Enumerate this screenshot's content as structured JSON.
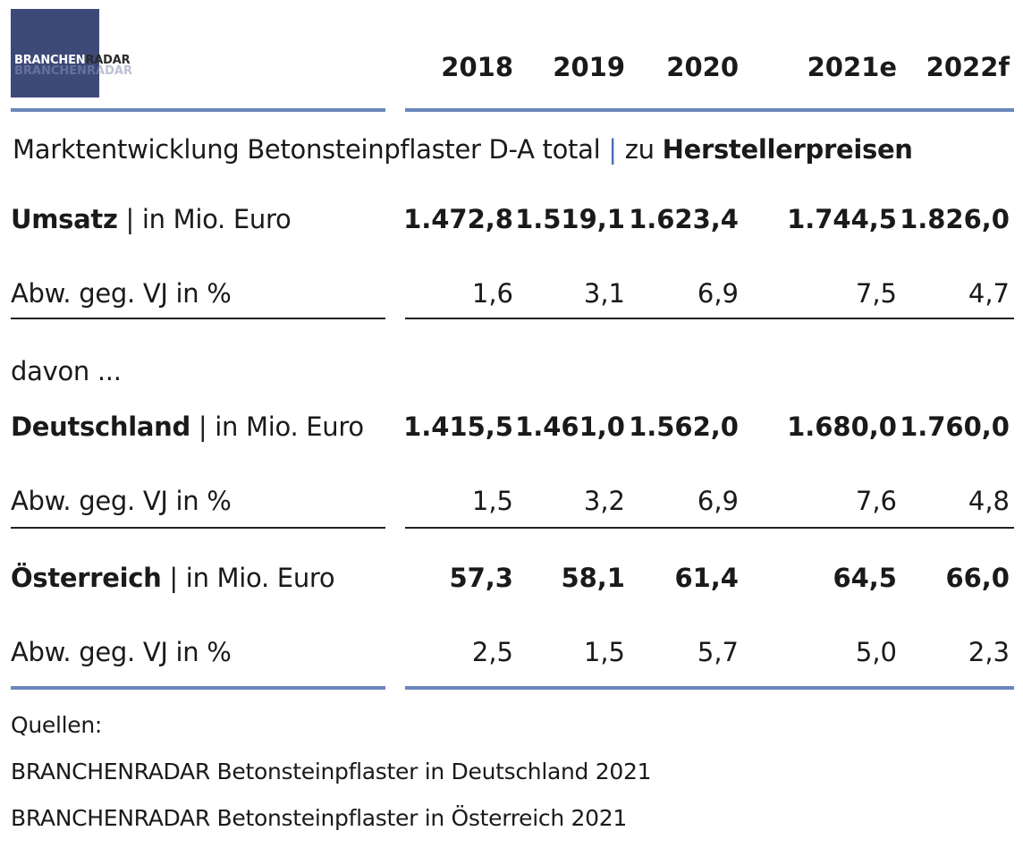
{
  "logo": {
    "brand": "BRANCHEN",
    "radar": "RADAR",
    "ghost": "BRANCHENRADAR"
  },
  "chart_data": {
    "type": "table",
    "title_main": "Marktentwicklung Betonsteinpflaster D-A total",
    "title_sep": "|",
    "title_pre": "zu",
    "title_bold": "Herstellerpreisen",
    "columns": [
      "2018",
      "2019",
      "2020",
      "2021e",
      "2022f"
    ],
    "rows": [
      {
        "label_bold": "Umsatz",
        "label_rest": " | in Mio. Euro",
        "bold": true,
        "values": [
          "1.472,8",
          "1.519,1",
          "1.623,4",
          "1.744,5",
          "1.826,0"
        ]
      },
      {
        "label_bold": "",
        "label_rest": "Abw. geg. VJ in %",
        "bold": false,
        "values": [
          "1,6",
          "3,1",
          "6,9",
          "7,5",
          "4,7"
        ]
      },
      {
        "label_bold": "",
        "label_rest": "davon ...",
        "bold": false,
        "values": []
      },
      {
        "label_bold": "Deutschland",
        "label_rest": " | in Mio. Euro",
        "bold": true,
        "values": [
          "1.415,5",
          "1.461,0",
          "1.562,0",
          "1.680,0",
          "1.760,0"
        ]
      },
      {
        "label_bold": "",
        "label_rest": "Abw. geg. VJ in %",
        "bold": false,
        "values": [
          "1,5",
          "3,2",
          "6,9",
          "7,6",
          "4,8"
        ]
      },
      {
        "label_bold": "Österreich",
        "label_rest": " | in Mio. Euro",
        "bold": true,
        "values": [
          "57,3",
          "58,1",
          "61,4",
          "64,5",
          "66,0"
        ]
      },
      {
        "label_bold": "",
        "label_rest": "Abw. geg. VJ in %",
        "bold": false,
        "values": [
          "2,5",
          "1,5",
          "5,7",
          "5,0",
          "2,3"
        ]
      }
    ],
    "sources": [
      "Quellen:",
      "BRANCHENRADAR Betonsteinpflaster in Deutschland 2021",
      "BRANCHENRADAR Betonsteinpflaster in Österreich 2021"
    ]
  }
}
